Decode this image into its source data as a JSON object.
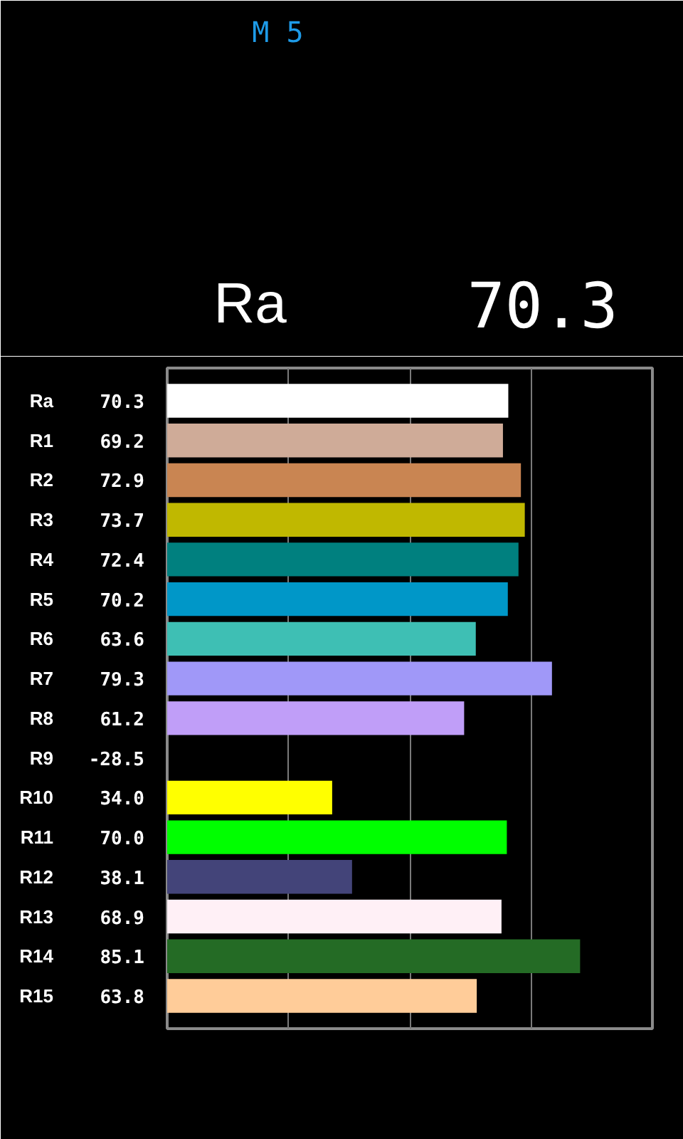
{
  "chart_data": {
    "type": "bar",
    "orientation": "horizontal",
    "categories": [
      "Ra",
      "R1",
      "R2",
      "R3",
      "R4",
      "R5",
      "R6",
      "R7",
      "R8",
      "R9",
      "R10",
      "R11",
      "R12",
      "R13",
      "R14",
      "R15"
    ],
    "values": [
      70.3,
      69.2,
      72.9,
      73.7,
      72.4,
      70.2,
      63.6,
      79.3,
      61.2,
      null,
      34.0,
      70.0,
      38.1,
      68.9,
      85.1,
      63.8
    ],
    "value_labels": [
      "70.3",
      "69.2",
      "72.9",
      "73.7",
      "72.4",
      "70.2",
      "63.6",
      "79.3",
      "61.2",
      "-28.5",
      "34.0",
      "70.0",
      "38.1",
      "68.9",
      "85.1",
      "63.8"
    ],
    "colors": [
      "#ffffff",
      "#cfab98",
      "#c98552",
      "#c0b800",
      "#00807f",
      "#0097c8",
      "#3ebfb4",
      "#a098f8",
      "#c09ef8",
      "#000000",
      "#ffff00",
      "#00ff00",
      "#434479",
      "#fff0f6",
      "#246b25",
      "#ffcc99"
    ],
    "xlim": [
      0,
      100
    ],
    "xticks": [
      {
        "value": 25,
        "label": null
      },
      {
        "value": 50,
        "label": null
      },
      {
        "value": 75,
        "label": null
      }
    ],
    "grid": "x",
    "tick_labels": "y",
    "annotations": [
      "M 5",
      "Ra",
      "70.3"
    ]
  }
}
